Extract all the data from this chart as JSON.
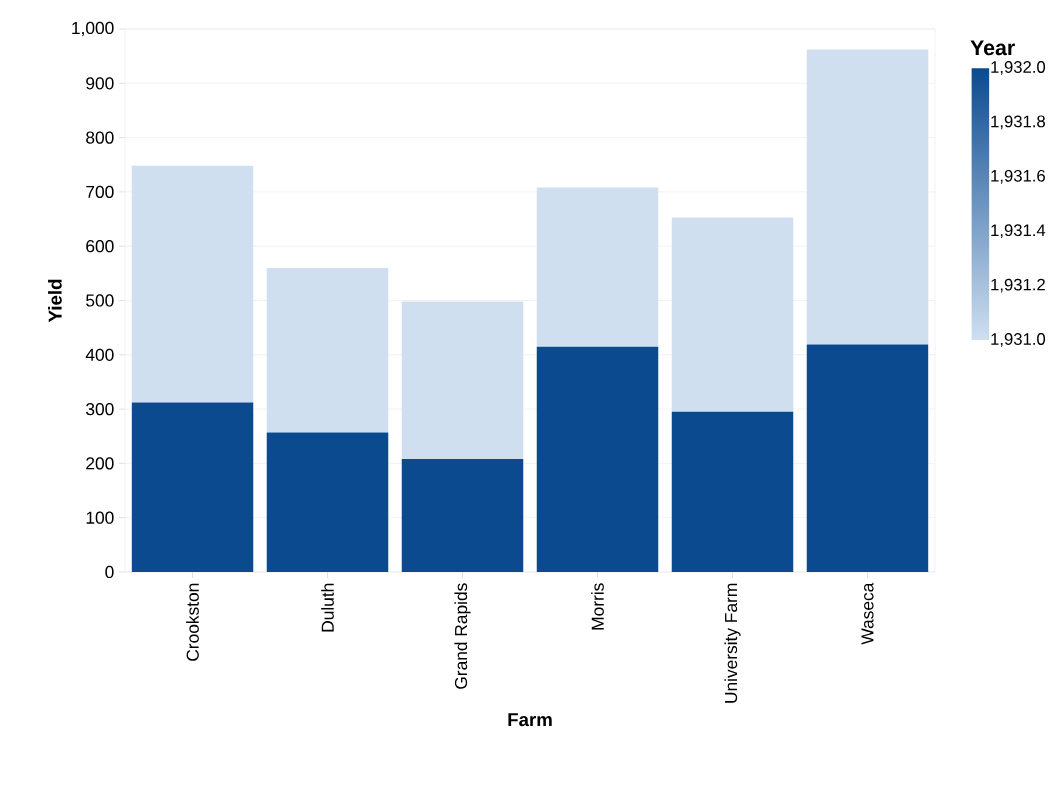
{
  "chart_data": {
    "type": "bar",
    "stacked": true,
    "xlabel": "Farm",
    "ylabel": "Yield",
    "clabel": "Year",
    "categories": [
      "Crookston",
      "Duluth",
      "Grand Rapids",
      "Morris",
      "University Farm",
      "Waseca"
    ],
    "series": [
      {
        "color": "#0b4a8f",
        "values": [
          312,
          257,
          208,
          415,
          295,
          419
        ]
      },
      {
        "color": "#cfdff0",
        "values": [
          436,
          303,
          290,
          293,
          358,
          543
        ]
      }
    ],
    "ylim": [
      0,
      1000
    ],
    "yticks": [
      0,
      100,
      200,
      300,
      400,
      500,
      600,
      700,
      800,
      900,
      {
        "value": 1000,
        "label": "1,000"
      }
    ],
    "grid": "y",
    "clim": [
      1931,
      1932
    ],
    "cticks": [
      {
        "value": 1931.0,
        "label": "1,931.0"
      },
      {
        "value": 1931.2,
        "label": "1,931.2"
      },
      {
        "value": 1931.4,
        "label": "1,931.4"
      },
      {
        "value": 1931.6,
        "label": "1,931.6"
      },
      {
        "value": 1931.8,
        "label": "1,931.8"
      },
      {
        "value": 1932.0,
        "label": "1,932.0"
      }
    ]
  }
}
